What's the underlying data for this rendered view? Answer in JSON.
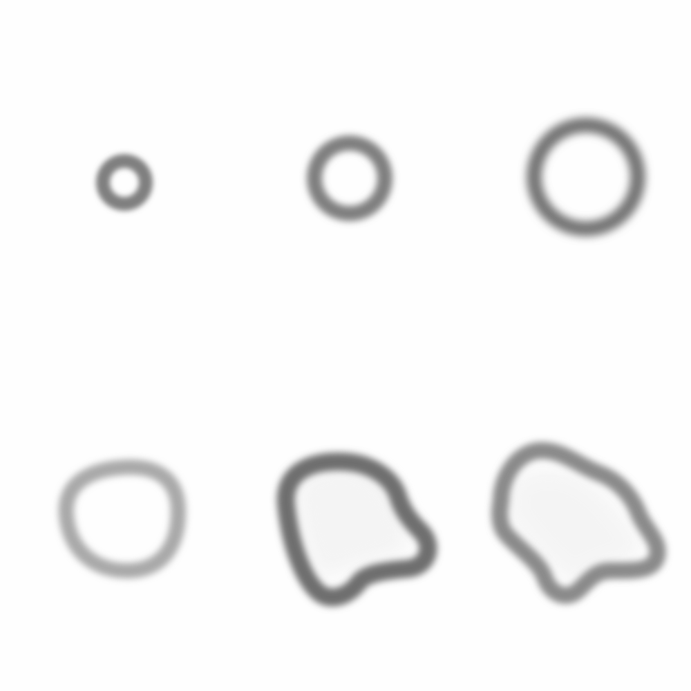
{
  "canvas": {
    "background": "#fefefe",
    "stroke_colors": {
      "dark": "#6e6e6e",
      "medium": "#7f7f7f",
      "light": "#a9a9a9"
    }
  },
  "shapes": [
    {
      "name": "small-ring",
      "kind": "ring"
    },
    {
      "name": "medium-ring",
      "kind": "ring"
    },
    {
      "name": "large-ring",
      "kind": "ring"
    },
    {
      "name": "irregular-oval-ring",
      "kind": "blob"
    },
    {
      "name": "irregular-blob-ring",
      "kind": "blob"
    },
    {
      "name": "star-blob-ring",
      "kind": "blob"
    }
  ]
}
